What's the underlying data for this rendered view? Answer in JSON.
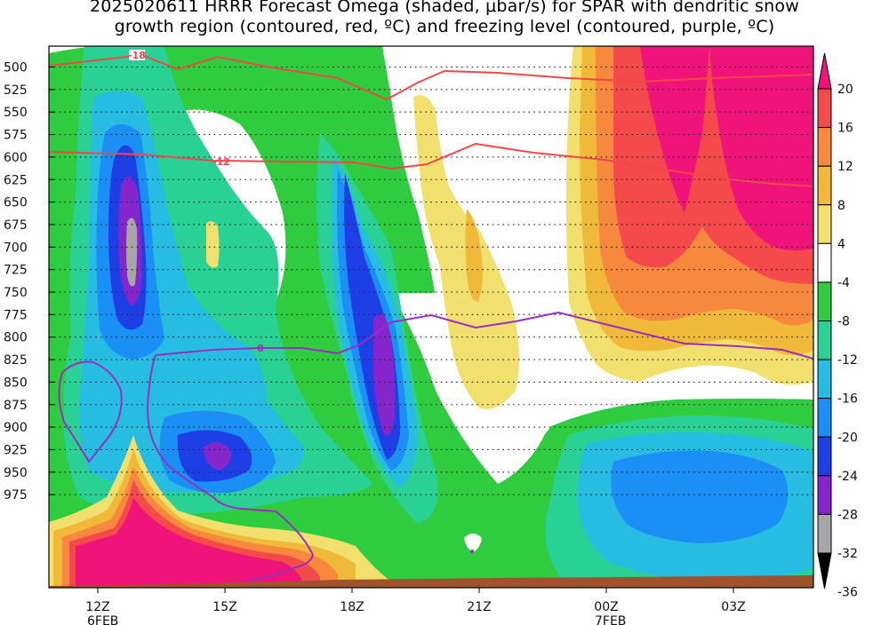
{
  "chart_data": {
    "type": "heatmap",
    "title_line1": "2025020611 HRRR Forecast Omega (shaded, μbar/s) for SPAR with dendritic snow",
    "title_line2": "growth region (contoured, red, ºC) and freezing level (contoured, purple, ºC)",
    "y_ticks": [
      "500",
      "525",
      "550",
      "575",
      "600",
      "625",
      "650",
      "675",
      "700",
      "725",
      "750",
      "775",
      "800",
      "825",
      "850",
      "875",
      "900",
      "925",
      "950",
      "975"
    ],
    "x_ticks": [
      "12Z",
      "15Z",
      "18Z",
      "21Z",
      "00Z",
      "03Z"
    ],
    "x_date_labels": [
      "6FEB",
      "7FEB"
    ],
    "colorbar": {
      "levels": [
        "20",
        "16",
        "12",
        "8",
        "4",
        "-4",
        "-8",
        "-12",
        "-16",
        "-20",
        "-24",
        "-28",
        "-32",
        "-36"
      ],
      "colors": [
        "#f0147a",
        "#f44a4c",
        "#f7893f",
        "#f0b93a",
        "#f2e06e",
        "#ffffff",
        "#2fcc3f",
        "#2ad195",
        "#27bde2",
        "#1a8ff6",
        "#1f3fe6",
        "#8525cc",
        "#a6a6a6",
        "#000000"
      ]
    },
    "contours": {
      "dendritic_labels": [
        "-18",
        "-12"
      ],
      "freezing_label": "0",
      "dendritic_color": "#f04848",
      "freezing_color": "#9b2ec0"
    },
    "surface_color": "#a0522d"
  }
}
